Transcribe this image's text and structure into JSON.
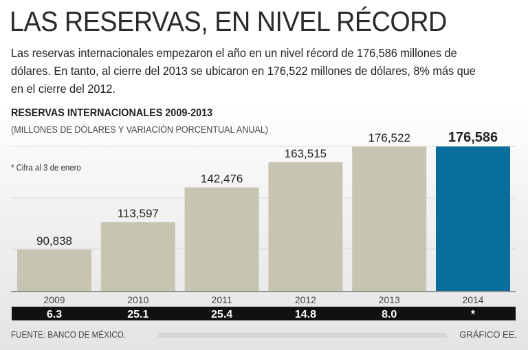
{
  "title": "LAS RESERVAS, EN NIVEL RÉCORD",
  "intro": "Las reservas internacionales empezaron el año en un nivel récord de 176,586 millones de dólares. En tanto, al cierre del 2013 se ubicaron en 176,522 millones de dólares, 8% más que en el cierre del 2012.",
  "note": "* Cifra al 3 de enero",
  "source": "FUENTE: BANCO DE MÉXICO.",
  "credit": "GRÁFICO EE.",
  "chart_data": {
    "type": "bar",
    "title": "RESERVAS INTERNACIONALES 2009-2013",
    "subtitle": "(MILLONES DE DÓLARES Y VARIACIÓN PORCENTUAL ANUAL)",
    "categories": [
      "2009",
      "2010",
      "2011",
      "2012",
      "2013",
      "2014"
    ],
    "values": [
      90838,
      113597,
      142476,
      163515,
      176522,
      176586
    ],
    "value_labels": [
      "90,838",
      "113,597",
      "142,476",
      "163,515",
      "176,522",
      "176,586"
    ],
    "variation_labels": [
      "6.3",
      "25.1",
      "25.4",
      "14.8",
      "8.0",
      "*"
    ],
    "ylim": [
      56500,
      176586
    ],
    "colors": {
      "bar": "#c8c4b2",
      "highlight": "#0a6e9c"
    },
    "highlight_index": 5
  }
}
